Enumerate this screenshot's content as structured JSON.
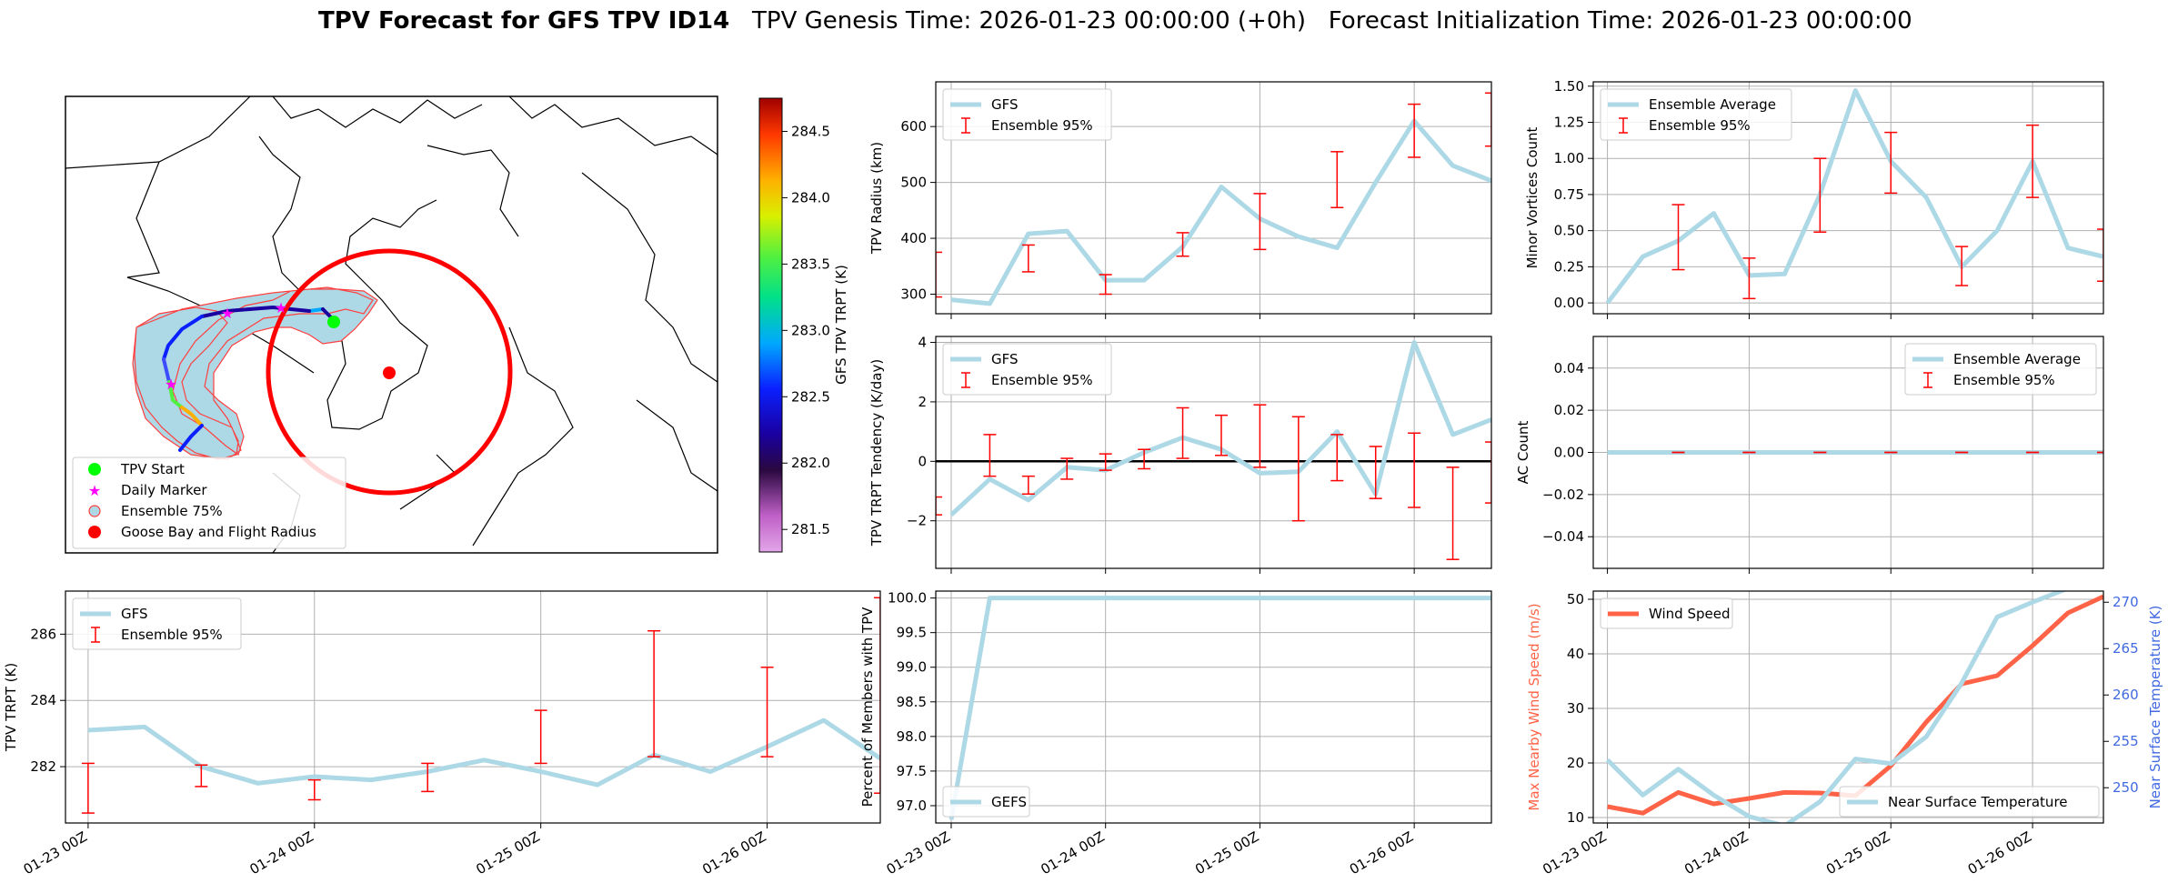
{
  "figure": {
    "title_bold": "TPV Forecast for GFS TPV ID14",
    "title_rest": "   TPV Genesis Time: 2026-01-23 00:00:00 (+0h)   Forecast Initialization Time: 2026-01-23 00:00:00"
  },
  "colors": {
    "gfs": "#add8e6",
    "errorbar": "#ff0000",
    "wind": "#ff6347",
    "temp_axis": "#4169e1",
    "map_shade": "#add8e6",
    "flight_radius": "#ff0000",
    "start": "#00ff00",
    "marker": "#ff00ff"
  },
  "map": {
    "colorbar": {
      "label": "GFS TPV TRPT (K)",
      "ticks": [
        "281.5",
        "282.0",
        "282.5",
        "283.0",
        "283.5",
        "284.0",
        "284.5"
      ]
    },
    "legend": [
      {
        "label": "TPV Start",
        "icon": "green-dot"
      },
      {
        "label": "Daily Marker",
        "icon": "magenta-star"
      },
      {
        "label": "Ensemble 75%",
        "icon": "shaded-circle"
      },
      {
        "label": "Goose Bay and Flight Radius",
        "icon": "red-dot"
      }
    ]
  },
  "chart_data": [
    {
      "id": "radius",
      "type": "line",
      "ylabel": "TPV Radius (km)",
      "xlabel": "",
      "ylim": [
        265,
        680
      ],
      "yticks": [
        "300",
        "400",
        "500",
        "600"
      ],
      "x": [
        0,
        0.25,
        0.5,
        0.75,
        1,
        1.25,
        1.5,
        1.75,
        2,
        2.25,
        2.5,
        2.75,
        3,
        3.25,
        3.5
      ],
      "legend": [
        "GFS",
        "Ensemble 95%"
      ],
      "series": [
        {
          "name": "GFS",
          "values": [
            290,
            283,
            408,
            413,
            325,
            325,
            385,
            492,
            435,
            403,
            383,
            500,
            610,
            530,
            503
          ]
        }
      ],
      "errorbars": [
        {
          "x": -0.1,
          "lo": 295,
          "hi": 375
        },
        {
          "x": 0.5,
          "lo": 340,
          "hi": 388
        },
        {
          "x": 1.0,
          "lo": 300,
          "hi": 335
        },
        {
          "x": 1.5,
          "lo": 368,
          "hi": 410
        },
        {
          "x": 2.0,
          "lo": 380,
          "hi": 480
        },
        {
          "x": 2.5,
          "lo": 455,
          "hi": 555
        },
        {
          "x": 3.0,
          "lo": 545,
          "hi": 640
        },
        {
          "x": 3.5,
          "lo": 565,
          "hi": 660
        }
      ]
    },
    {
      "id": "minor",
      "type": "line",
      "ylabel": "Minor Vortices Count",
      "xlabel": "",
      "ylim": [
        -0.075,
        1.53
      ],
      "yticks": [
        "0.00",
        "0.25",
        "0.50",
        "0.75",
        "1.00",
        "1.25",
        "1.50"
      ],
      "x": [
        0,
        0.25,
        0.5,
        0.75,
        1,
        1.25,
        1.5,
        1.75,
        2,
        2.25,
        2.5,
        2.75,
        3,
        3.25,
        3.5
      ],
      "legend": [
        "Ensemble Average",
        "Ensemble 95%"
      ],
      "series": [
        {
          "name": "Ensemble Average",
          "values": [
            0,
            0.32,
            0.43,
            0.62,
            0.19,
            0.2,
            0.75,
            1.47,
            0.98,
            0.73,
            0.25,
            0.5,
            0.98,
            0.38,
            0.32
          ]
        }
      ],
      "errorbars": [
        {
          "x": 0.5,
          "lo": 0.23,
          "hi": 0.68
        },
        {
          "x": 1.0,
          "lo": 0.03,
          "hi": 0.31
        },
        {
          "x": 1.5,
          "lo": 0.49,
          "hi": 1.0
        },
        {
          "x": 2.0,
          "lo": 0.76,
          "hi": 1.18
        },
        {
          "x": 2.5,
          "lo": 0.12,
          "hi": 0.39
        },
        {
          "x": 3.0,
          "lo": 0.73,
          "hi": 1.23
        },
        {
          "x": 3.5,
          "lo": 0.15,
          "hi": 0.51
        }
      ]
    },
    {
      "id": "tendency",
      "type": "line",
      "ylabel": "TPV TRPT Tendency (K/day)",
      "xlabel": "",
      "ylim": [
        -3.6,
        4.2
      ],
      "yticks": [
        "−2",
        "0",
        "2",
        "4"
      ],
      "x": [
        0,
        0.25,
        0.5,
        0.75,
        1,
        1.25,
        1.5,
        1.75,
        2,
        2.25,
        2.5,
        2.75,
        3,
        3.25,
        3.5
      ],
      "legend": [
        "GFS",
        "Ensemble 95%"
      ],
      "series": [
        {
          "name": "GFS",
          "values": [
            -1.8,
            -0.6,
            -1.3,
            -0.2,
            -0.3,
            0.3,
            0.8,
            0.4,
            -0.4,
            -0.35,
            1.0,
            -1.1,
            4.0,
            0.9,
            1.4
          ]
        }
      ],
      "errorbars": [
        {
          "x": -0.1,
          "lo": -1.8,
          "hi": -1.2
        },
        {
          "x": 0.25,
          "lo": -0.5,
          "hi": 0.9
        },
        {
          "x": 0.5,
          "lo": -1.1,
          "hi": -0.5
        },
        {
          "x": 0.75,
          "lo": -0.6,
          "hi": 0.1
        },
        {
          "x": 1.0,
          "lo": -0.3,
          "hi": 0.25
        },
        {
          "x": 1.25,
          "lo": -0.25,
          "hi": 0.4
        },
        {
          "x": 1.5,
          "lo": 0.1,
          "hi": 1.8
        },
        {
          "x": 1.75,
          "lo": 0.2,
          "hi": 1.55
        },
        {
          "x": 2.0,
          "lo": -0.2,
          "hi": 1.9
        },
        {
          "x": 2.25,
          "lo": -2.0,
          "hi": 1.5
        },
        {
          "x": 2.5,
          "lo": -0.65,
          "hi": 0.9
        },
        {
          "x": 2.75,
          "lo": -1.25,
          "hi": 0.5
        },
        {
          "x": 3.0,
          "lo": -1.55,
          "hi": 0.95
        },
        {
          "x": 3.25,
          "lo": -3.3,
          "hi": -0.2
        },
        {
          "x": 3.5,
          "lo": -1.4,
          "hi": 0.65
        }
      ]
    },
    {
      "id": "ac",
      "type": "line",
      "ylabel": "AC Count",
      "xlabel": "",
      "ylim": [
        -0.055,
        0.055
      ],
      "yticks": [
        "−0.04",
        "−0.02",
        "0.00",
        "0.02",
        "0.04"
      ],
      "x": [
        0,
        0.25,
        0.5,
        0.75,
        1,
        1.25,
        1.5,
        1.75,
        2,
        2.25,
        2.5,
        2.75,
        3,
        3.25,
        3.5
      ],
      "legend": [
        "Ensemble Average",
        "Ensemble 95%"
      ],
      "series": [
        {
          "name": "Ensemble Average",
          "values": [
            0,
            0,
            0,
            0,
            0,
            0,
            0,
            0,
            0,
            0,
            0,
            0,
            0,
            0,
            0
          ]
        }
      ],
      "errorbars": [
        {
          "x": 0.5,
          "lo": 0,
          "hi": 0
        },
        {
          "x": 1.0,
          "lo": 0,
          "hi": 0
        },
        {
          "x": 1.5,
          "lo": 0,
          "hi": 0
        },
        {
          "x": 2.0,
          "lo": 0,
          "hi": 0
        },
        {
          "x": 2.5,
          "lo": 0,
          "hi": 0
        },
        {
          "x": 3.0,
          "lo": 0,
          "hi": 0
        },
        {
          "x": 3.5,
          "lo": 0,
          "hi": 0
        }
      ]
    },
    {
      "id": "trpt",
      "type": "line",
      "ylabel": "TPV TRPT (K)",
      "xlabel": "",
      "ylim": [
        280.3,
        287.3
      ],
      "yticks": [
        "282",
        "284",
        "286"
      ],
      "xticks": [
        "01-23 00Z",
        "01-24 00Z",
        "01-25 00Z",
        "01-26 00Z"
      ],
      "x": [
        0,
        0.25,
        0.5,
        0.75,
        1,
        1.25,
        1.5,
        1.75,
        2,
        2.25,
        2.5,
        2.75,
        3,
        3.25,
        3.5
      ],
      "legend": [
        "GFS",
        "Ensemble 95%"
      ],
      "series": [
        {
          "name": "GFS",
          "values": [
            283.1,
            283.2,
            282.0,
            281.5,
            281.7,
            281.6,
            281.85,
            282.2,
            281.85,
            281.45,
            282.35,
            281.85,
            282.6,
            283.4,
            282.25
          ]
        }
      ],
      "errorbars": [
        {
          "x": 0.0,
          "lo": 280.6,
          "hi": 282.1
        },
        {
          "x": 0.5,
          "lo": 281.4,
          "hi": 282.05
        },
        {
          "x": 1.0,
          "lo": 281.0,
          "hi": 281.6
        },
        {
          "x": 1.5,
          "lo": 281.25,
          "hi": 282.1
        },
        {
          "x": 2.0,
          "lo": 282.1,
          "hi": 283.7
        },
        {
          "x": 2.5,
          "lo": 282.3,
          "hi": 286.1
        },
        {
          "x": 3.0,
          "lo": 282.3,
          "hi": 285.0
        },
        {
          "x": 3.5,
          "lo": 281.2,
          "hi": 287.1
        }
      ]
    },
    {
      "id": "members",
      "type": "line",
      "ylabel": "Percent of Members with TPV",
      "xlabel": "",
      "ylim": [
        96.75,
        100.1
      ],
      "yticks": [
        "97.0",
        "97.5",
        "98.0",
        "98.5",
        "99.0",
        "99.5",
        "100.0"
      ],
      "xticks": [
        "01-23 00Z",
        "01-24 00Z",
        "01-25 00Z",
        "01-26 00Z"
      ],
      "x": [
        0,
        0.25,
        0.5,
        0.75,
        1,
        1.25,
        1.5,
        1.75,
        2,
        2.25,
        2.5,
        2.75,
        3,
        3.25,
        3.5
      ],
      "legend": [
        "GEFS"
      ],
      "series": [
        {
          "name": "GEFS",
          "values": [
            96.8,
            100,
            100,
            100,
            100,
            100,
            100,
            100,
            100,
            100,
            100,
            100,
            100,
            100,
            100
          ]
        }
      ]
    },
    {
      "id": "wind",
      "type": "line",
      "ylabel": "Max Nearby Wind Speed (m/s)",
      "ylabel_right": "Near Surface Temperature (K)",
      "xlabel": "",
      "ylim": [
        9,
        51.5
      ],
      "ylim_right": [
        246.2,
        271.2
      ],
      "yticks": [
        "10",
        "20",
        "30",
        "40",
        "50"
      ],
      "yticks_right": [
        "250",
        "255",
        "260",
        "265",
        "270"
      ],
      "xticks": [
        "01-23 00Z",
        "01-24 00Z",
        "01-25 00Z",
        "01-26 00Z"
      ],
      "x": [
        0,
        0.25,
        0.5,
        0.75,
        1,
        1.25,
        1.5,
        1.75,
        2,
        2.25,
        2.5,
        2.75,
        3,
        3.25,
        3.5
      ],
      "legend": [
        "Wind Speed"
      ],
      "legend_right": [
        "Near Surface Temperature"
      ],
      "series": [
        {
          "name": "Wind Speed",
          "axis": "left",
          "values": [
            12,
            10.8,
            14.6,
            12.5,
            13.5,
            14.6,
            14.5,
            14.0,
            19.5,
            27.5,
            34.5,
            36,
            41.5,
            47.5,
            50.5
          ]
        },
        {
          "name": "Near Surface Temperature",
          "axis": "right",
          "values": [
            253.0,
            249.2,
            252.0,
            249.2,
            246.9,
            245.9,
            248.5,
            253.1,
            252.6,
            255.5,
            261.3,
            268.4,
            270.0,
            271.5,
            271.5
          ]
        }
      ]
    }
  ]
}
